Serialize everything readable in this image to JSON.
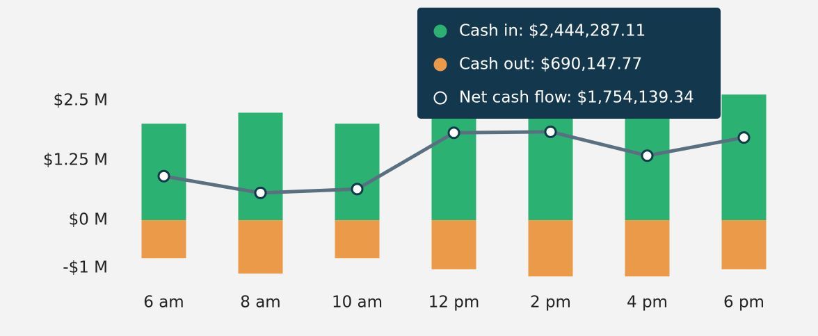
{
  "chart_data": {
    "type": "bar",
    "categories": [
      "6 am",
      "8 am",
      "10 am",
      "12 pm",
      "2 pm",
      "4 pm",
      "6 pm"
    ],
    "series": [
      {
        "color": "#2bb273",
        "kind": "bar",
        "values": [
          2.02,
          2.25,
          2.02,
          2.5,
          2.4,
          2.4,
          2.63
        ]
      },
      {
        "color": "#eb9a4a",
        "kind": "bar",
        "values": [
          -0.8,
          -1.12,
          -0.8,
          -1.03,
          -1.18,
          -1.18,
          -1.03
        ]
      },
      {
        "color": "#5a7080",
        "kind": "line",
        "values": [
          0.92,
          0.57,
          0.65,
          1.83,
          1.85,
          1.35,
          1.73
        ]
      }
    ],
    "ylim": [
      -1.25,
      3.2
    ],
    "yticks": [
      {
        "value": 2.5,
        "label": "$2.5 M"
      },
      {
        "value": 1.25,
        "label": "$1.25 M"
      },
      {
        "value": 0,
        "label": "$0 M"
      },
      {
        "value": -1,
        "label": "-$1 M"
      }
    ],
    "tooltip": {
      "items": [
        "Cash in: $2,444,287.11",
        "Cash out: $690,147.77",
        "Net cash flow: $1,754,139.34"
      ]
    }
  }
}
